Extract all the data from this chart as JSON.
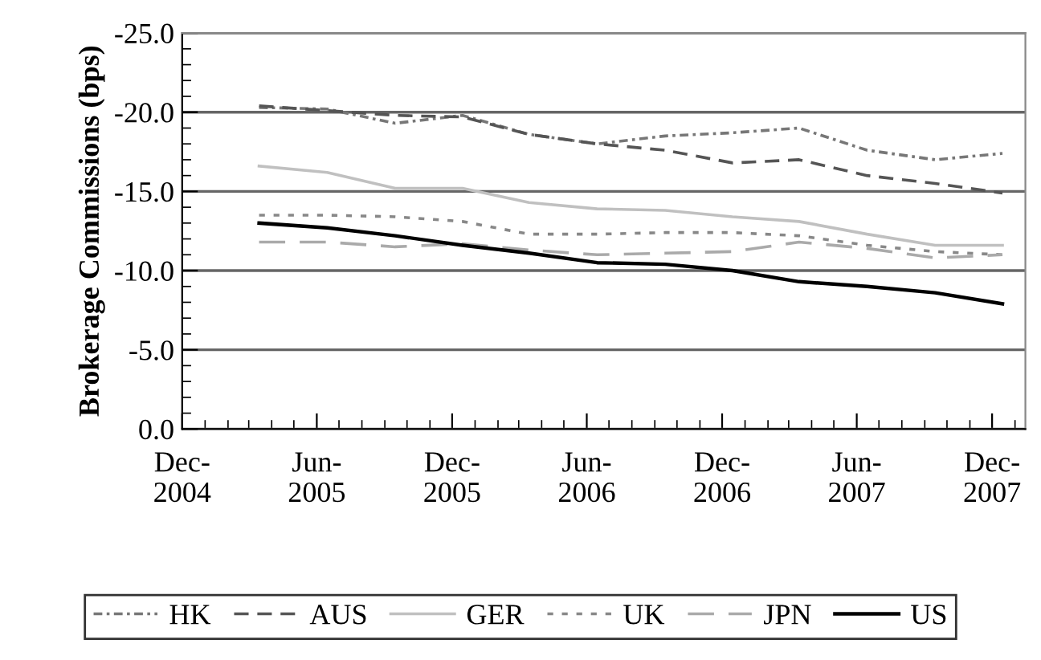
{
  "chart_data": {
    "type": "line",
    "ylabel": "Brokerage Commissions (bps)",
    "x": [
      "2005-03-15",
      "2005-06-15",
      "2005-09-15",
      "2005-12-15",
      "2006-03-15",
      "2006-06-15",
      "2006-09-15",
      "2006-12-15",
      "2007-03-15",
      "2007-06-15",
      "2007-09-15",
      "2007-12-15"
    ],
    "series": [
      {
        "name": "HK",
        "color": "#777777",
        "line_style": "dashdot",
        "values": [
          -20.3,
          -20.2,
          -19.3,
          -19.8,
          -18.6,
          -18.0,
          -18.5,
          -18.7,
          -19.0,
          -17.6,
          -17.0,
          -17.4
        ]
      },
      {
        "name": "AUS",
        "color": "#555555",
        "line_style": "dashed",
        "values": [
          -20.4,
          -20.1,
          -19.8,
          -19.7,
          -18.6,
          -18.0,
          -17.6,
          -16.8,
          -17.0,
          -16.0,
          -15.5,
          -14.9
        ]
      },
      {
        "name": "GER",
        "color": "#c0c0c0",
        "line_style": "solid",
        "values": [
          -16.6,
          -16.2,
          -15.2,
          -15.2,
          -14.3,
          -13.9,
          -13.8,
          -13.4,
          -13.1,
          -12.3,
          -11.6,
          -11.6
        ]
      },
      {
        "name": "UK",
        "color": "#888888",
        "line_style": "dotted",
        "values": [
          -13.5,
          -13.5,
          -13.4,
          -13.1,
          -12.3,
          -12.3,
          -12.4,
          -12.4,
          -12.2,
          -11.6,
          -11.2,
          -11.0
        ]
      },
      {
        "name": "JPN",
        "color": "#aaaaaa",
        "line_style": "longdash",
        "values": [
          -11.8,
          -11.8,
          -11.5,
          -11.7,
          -11.3,
          -11.0,
          -11.1,
          -11.2,
          -11.8,
          -11.4,
          -10.8,
          -11.0
        ]
      },
      {
        "name": "US",
        "color": "#000000",
        "line_style": "solid",
        "values": [
          -13.0,
          -12.7,
          -12.2,
          -11.6,
          -11.1,
          -10.5,
          -10.4,
          -10.0,
          -9.3,
          -9.0,
          -8.6,
          -7.9
        ]
      }
    ],
    "xlim": [
      "2004-12-01",
      "2008-01-15"
    ],
    "xticks": [
      {
        "value": "2004-12-01",
        "label": "Dec-\n2004"
      },
      {
        "value": "2005-06-01",
        "label": "Jun-\n2005"
      },
      {
        "value": "2005-12-01",
        "label": "Dec-\n2005"
      },
      {
        "value": "2006-06-01",
        "label": "Jun-\n2006"
      },
      {
        "value": "2006-12-01",
        "label": "Dec-\n2006"
      },
      {
        "value": "2007-06-01",
        "label": "Jun-\n2007"
      },
      {
        "value": "2007-12-01",
        "label": "Dec-\n2007"
      }
    ],
    "ylim": [
      0,
      -25
    ],
    "yticks": [
      {
        "value": -25,
        "label": "-25.0"
      },
      {
        "value": -20,
        "label": "-20.0"
      },
      {
        "value": -15,
        "label": "-15.0"
      },
      {
        "value": -10,
        "label": "-10.0"
      },
      {
        "value": -5,
        "label": "-5.0"
      },
      {
        "value": 0,
        "label": "0.0"
      }
    ],
    "grid": "y",
    "legend": "bottom",
    "marker": "none"
  }
}
